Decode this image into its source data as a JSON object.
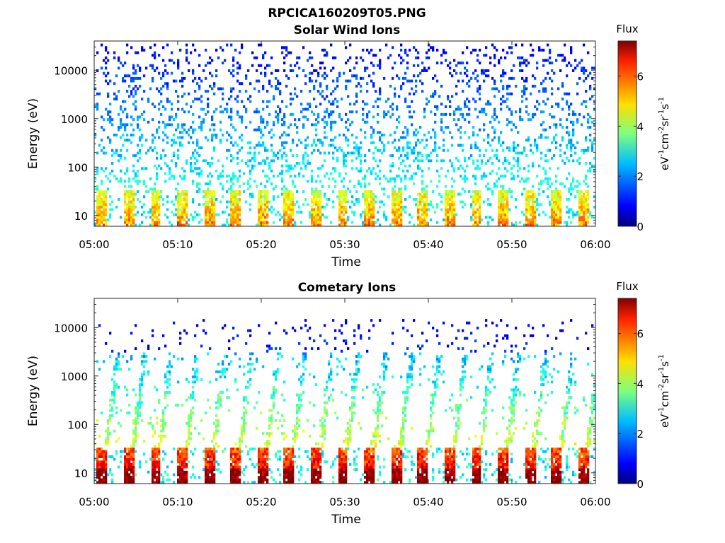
{
  "title": "RPCICA160209T05.PNG",
  "chart_data": [
    {
      "type": "heatmap",
      "title": "Solar Wind Ions",
      "xlabel": "Time",
      "ylabel": "Energy (eV)",
      "xlim": [
        "05:00",
        "06:00"
      ],
      "x_ticks": [
        "05:00",
        "05:10",
        "05:20",
        "05:30",
        "05:40",
        "05:50",
        "06:00"
      ],
      "y_scale": "log",
      "ylim": [
        6,
        40000
      ],
      "y_ticks": [
        "10",
        "100",
        "1000",
        "10000"
      ],
      "colorbar": {
        "title": "Flux",
        "label": "eV-1cm-2sr-1s-1",
        "range": [
          0,
          7.4
        ],
        "ticks": [
          "0",
          "2",
          "4",
          "6"
        ],
        "colormap": "jet"
      },
      "features": {
        "pulse_period_min": 3.2,
        "low_energy_band_eV": [
          6,
          32
        ],
        "low_energy_band_peak_flux": 5.5,
        "background_scatter_flux": [
          1,
          3
        ],
        "scatter_extends_to_eV": 35000
      }
    },
    {
      "type": "heatmap",
      "title": "Cometary Ions",
      "xlabel": "Time",
      "ylabel": "Energy (eV)",
      "xlim": [
        "05:00",
        "06:00"
      ],
      "x_ticks": [
        "05:00",
        "05:10",
        "05:20",
        "05:30",
        "05:40",
        "05:50",
        "06:00"
      ],
      "y_scale": "log",
      "ylim": [
        6,
        40000
      ],
      "y_ticks": [
        "10",
        "100",
        "1000",
        "10000"
      ],
      "colorbar": {
        "title": "Flux",
        "label": "eV-1cm-2sr-1s-1",
        "range": [
          0,
          7.4
        ],
        "ticks": [
          "0",
          "2",
          "4",
          "6"
        ],
        "colormap": "jet"
      },
      "features": {
        "pulse_period_min": 3.2,
        "low_energy_band_eV": [
          6,
          32
        ],
        "low_energy_band_peak_flux": 7.0,
        "dispersion_streaks_eV": [
          60,
          3000
        ],
        "scatter_extends_to_eV": 15000
      }
    }
  ]
}
